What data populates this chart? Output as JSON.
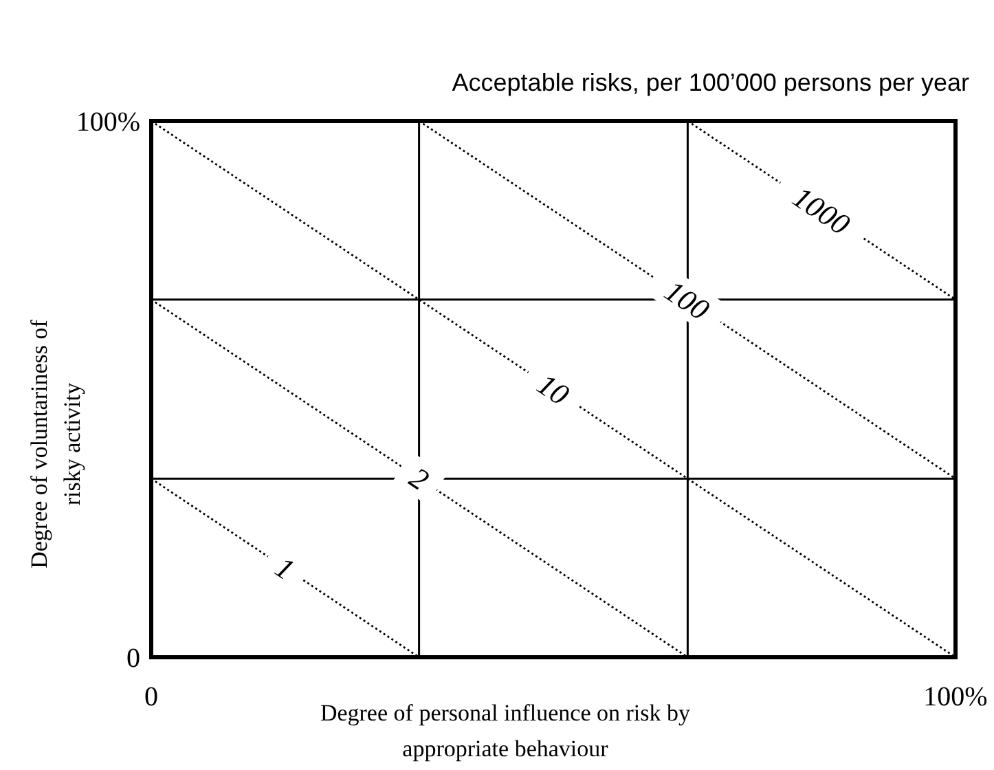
{
  "chart_data": {
    "type": "line",
    "title": "Acceptable risks, per 100’000 persons per year",
    "xlabel": "Degree of personal influence on risk by\nappropriate behaviour",
    "ylabel": "Degree of voluntariness of\nrisky activity",
    "xlim": [
      0,
      100
    ],
    "ylim": [
      0,
      100
    ],
    "xticks": [
      {
        "value": 0,
        "label": "0"
      },
      {
        "value": 33.3,
        "label": null
      },
      {
        "value": 66.7,
        "label": null
      },
      {
        "value": 100,
        "label": "100%"
      }
    ],
    "yticks": [
      {
        "value": 0,
        "label": "0"
      },
      {
        "value": 33.3,
        "label": null
      },
      {
        "value": 66.7,
        "label": null
      },
      {
        "value": 100,
        "label": "100%"
      }
    ],
    "grid": true,
    "marker": "none",
    "line_style": "dotted",
    "series": [
      {
        "name": "1",
        "color": "#000000",
        "x": [
          0,
          33.3
        ],
        "values": [
          33.3,
          0
        ]
      },
      {
        "name": "2",
        "color": "#000000",
        "x": [
          0,
          66.7
        ],
        "values": [
          66.7,
          0
        ]
      },
      {
        "name": "10",
        "color": "#000000",
        "x": [
          0,
          100
        ],
        "values": [
          100,
          0
        ]
      },
      {
        "name": "100",
        "color": "#000000",
        "x": [
          33.3,
          100
        ],
        "values": [
          100,
          33.3
        ]
      },
      {
        "name": "1000",
        "color": "#000000",
        "x": [
          66.7,
          100
        ],
        "values": [
          100,
          66.7
        ]
      }
    ]
  }
}
